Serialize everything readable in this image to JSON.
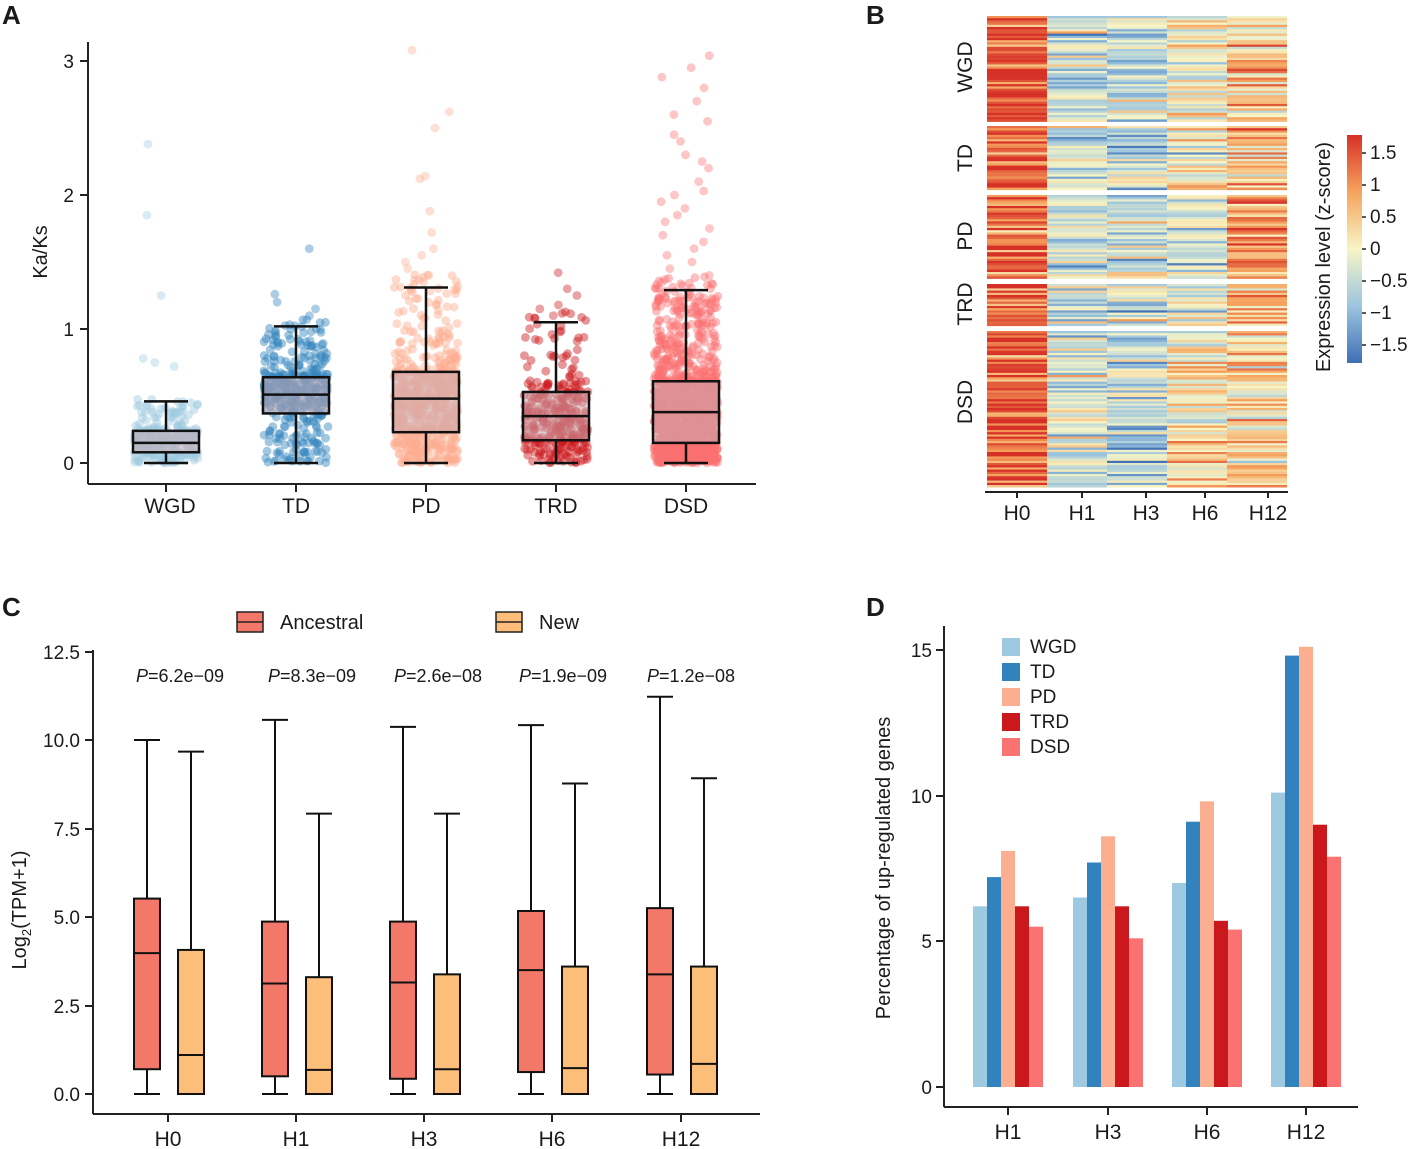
{
  "colors": {
    "WGD": "#9ecae1",
    "TD": "#3182bd",
    "PD": "#fcae91",
    "TRD": "#cb181d",
    "DSD": "#fb7272",
    "ancestral": "#f4786a",
    "new": "#fdbe7a",
    "box_fill": "#c9aab0"
  },
  "panels": {
    "A": {
      "label": "A",
      "chart_data": {
        "type": "box",
        "ylabel": "Ka/Ks",
        "ylim": [
          0,
          3.1
        ],
        "yticks": [
          "0",
          "1",
          "2",
          "3"
        ],
        "categories": [
          "WGD",
          "TD",
          "PD",
          "TRD",
          "DSD"
        ],
        "boxes": [
          {
            "name": "WGD",
            "min": 0.0,
            "q1": 0.08,
            "median": 0.15,
            "q3": 0.24,
            "max": 0.46,
            "outliers": [
              2.38,
              1.85,
              1.25,
              0.78,
              0.75,
              0.72
            ]
          },
          {
            "name": "TD",
            "min": 0.0,
            "q1": 0.37,
            "median": 0.51,
            "q3": 0.64,
            "max": 1.02,
            "outliers": [
              1.6,
              1.26,
              1.2,
              1.15,
              1.1,
              1.07
            ]
          },
          {
            "name": "PD",
            "min": 0.0,
            "q1": 0.23,
            "median": 0.48,
            "q3": 0.68,
            "max": 1.31,
            "outliers": [
              3.08,
              2.62,
              2.5,
              2.14,
              2.12,
              1.88,
              1.72,
              1.6,
              1.55,
              1.5,
              1.45,
              1.4
            ]
          },
          {
            "name": "TRD",
            "min": 0.0,
            "q1": 0.17,
            "median": 0.35,
            "q3": 0.53,
            "max": 1.05,
            "outliers": [
              1.42,
              1.3,
              1.25,
              1.18,
              1.15,
              1.1
            ]
          },
          {
            "name": "DSD",
            "min": 0.0,
            "q1": 0.15,
            "median": 0.38,
            "q3": 0.61,
            "max": 1.29,
            "outliers": [
              3.04,
              2.95,
              2.88,
              2.8,
              2.7,
              2.6,
              2.55,
              2.45,
              2.4,
              2.3,
              2.25,
              2.2,
              2.1,
              2.03,
              2.0,
              1.95,
              1.9,
              1.85,
              1.8,
              1.75,
              1.7,
              1.65,
              1.6,
              1.55,
              1.5,
              1.45,
              1.4,
              1.35
            ]
          }
        ]
      }
    },
    "B": {
      "label": "B",
      "chart_data": {
        "type": "heatmap",
        "columns": [
          "H0",
          "H1",
          "H3",
          "H6",
          "H12"
        ],
        "row_groups": [
          {
            "name": "WGD",
            "mean_z": [
              1.5,
              -0.6,
              -0.7,
              0.0,
              0.4
            ]
          },
          {
            "name": "TD",
            "mean_z": [
              1.3,
              -0.5,
              -0.6,
              0.1,
              0.7
            ]
          },
          {
            "name": "PD",
            "mean_z": [
              1.3,
              -0.5,
              -0.5,
              -0.2,
              1.0
            ]
          },
          {
            "name": "TRD",
            "mean_z": [
              1.4,
              -0.6,
              -0.5,
              -0.3,
              0.6
            ]
          },
          {
            "name": "DSD",
            "mean_z": [
              1.4,
              -0.5,
              -0.6,
              0.2,
              0.3
            ]
          }
        ],
        "colorbar_label": "Expression level (z-score)",
        "colorbar_range": [
          -1.8,
          1.8
        ],
        "colorbar_ticks": [
          "1.5",
          "1",
          "0.5",
          "0",
          "−0.5",
          "−1",
          "−1.5"
        ]
      }
    },
    "C": {
      "label": "C",
      "chart_data": {
        "type": "box",
        "ylabel_main": "Log",
        "ylabel_sub": "2",
        "ylabel_rest": "(TPM+1)",
        "ylim": [
          0,
          12.5
        ],
        "yticks": [
          "0.0",
          "2.5",
          "5.0",
          "7.5",
          "10.0",
          "12.5"
        ],
        "categories": [
          "H0",
          "H1",
          "H3",
          "H6",
          "H12"
        ],
        "legend": [
          "Ancestral",
          "New"
        ],
        "p_prefix": "P",
        "p_values": [
          "=6.2e−09",
          "=8.3e−09",
          "=2.6e−08",
          "=1.9e−09",
          "=1.2e−08"
        ],
        "series": [
          {
            "name": "Ancestral",
            "boxes": [
              {
                "min": 0.0,
                "q1": 0.7,
                "median": 3.98,
                "q3": 5.52,
                "max": 10.0
              },
              {
                "min": 0.0,
                "q1": 0.5,
                "median": 3.12,
                "q3": 4.87,
                "max": 10.57
              },
              {
                "min": 0.0,
                "q1": 0.43,
                "median": 3.15,
                "q3": 4.87,
                "max": 10.37
              },
              {
                "min": 0.0,
                "q1": 0.62,
                "median": 3.5,
                "q3": 5.17,
                "max": 10.42
              },
              {
                "min": 0.0,
                "q1": 0.55,
                "median": 3.38,
                "q3": 5.25,
                "max": 11.22
              }
            ]
          },
          {
            "name": "New",
            "boxes": [
              {
                "min": 0.0,
                "q1": 0.0,
                "median": 1.1,
                "q3": 4.07,
                "max": 9.67
              },
              {
                "min": 0.0,
                "q1": 0.0,
                "median": 0.68,
                "q3": 3.3,
                "max": 7.92
              },
              {
                "min": 0.0,
                "q1": 0.0,
                "median": 0.7,
                "q3": 3.38,
                "max": 7.92
              },
              {
                "min": 0.0,
                "q1": 0.0,
                "median": 0.73,
                "q3": 3.6,
                "max": 8.77
              },
              {
                "min": 0.0,
                "q1": 0.0,
                "median": 0.85,
                "q3": 3.6,
                "max": 8.92
              }
            ]
          }
        ]
      }
    },
    "D": {
      "label": "D",
      "chart_data": {
        "type": "bar",
        "ylabel": "Percentage of up-regulated genes",
        "ylim": [
          -0.6,
          16
        ],
        "yticks": [
          "0",
          "5",
          "10",
          "15"
        ],
        "categories": [
          "H1",
          "H3",
          "H6",
          "H12"
        ],
        "series": [
          {
            "name": "WGD",
            "values": [
              6.2,
              6.5,
              7.0,
              10.1
            ]
          },
          {
            "name": "TD",
            "values": [
              7.2,
              7.7,
              9.1,
              14.8
            ]
          },
          {
            "name": "PD",
            "values": [
              8.1,
              8.6,
              9.8,
              15.1
            ]
          },
          {
            "name": "TRD",
            "values": [
              6.2,
              6.2,
              5.7,
              9.0
            ]
          },
          {
            "name": "DSD",
            "values": [
              5.5,
              5.1,
              5.4,
              7.9
            ]
          }
        ]
      }
    }
  }
}
